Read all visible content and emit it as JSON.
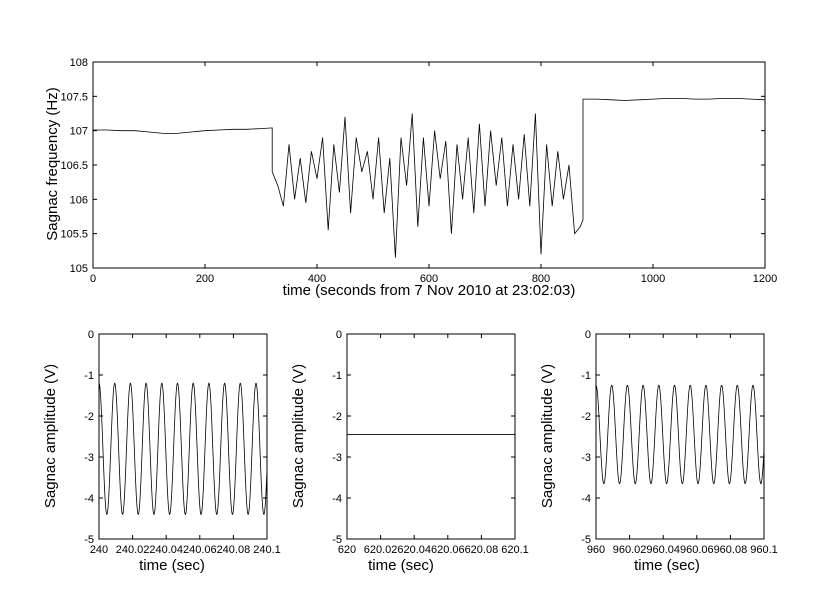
{
  "chart_data": [
    {
      "type": "line",
      "xlabel": "time (seconds from 7 Nov 2010 at 23:02:03)",
      "ylabel": "Sagnac frequency (Hz)",
      "xlim": [
        0,
        1200
      ],
      "ylim": [
        105,
        108
      ],
      "xticks": [
        0,
        200,
        400,
        600,
        800,
        1000,
        1200
      ],
      "yticks": [
        105,
        105.5,
        106,
        106.5,
        107,
        107.5,
        108
      ],
      "grid": false,
      "segments": [
        {
          "x": [
            0,
            25,
            50,
            75,
            100,
            125,
            150,
            175,
            200,
            225,
            250,
            275,
            300,
            320
          ],
          "y": [
            107.01,
            107.01,
            107.0,
            107.0,
            106.98,
            106.96,
            106.96,
            106.98,
            107.0,
            107.01,
            107.02,
            107.02,
            107.03,
            107.04
          ]
        },
        {
          "x": [
            320,
            330,
            340,
            350,
            360,
            370,
            380,
            390,
            400,
            410,
            420,
            430,
            440,
            450,
            460,
            470,
            480,
            490,
            500,
            510,
            520,
            530,
            540,
            550,
            560,
            570,
            580,
            590,
            600,
            610,
            620,
            630,
            640,
            650,
            660,
            670,
            680,
            690,
            700,
            710,
            720,
            730,
            740,
            750,
            760,
            770,
            780,
            790,
            800,
            810,
            820,
            830,
            840,
            850,
            860,
            870,
            875
          ],
          "y": [
            106.4,
            106.2,
            105.9,
            106.8,
            106.0,
            106.6,
            105.95,
            106.7,
            106.3,
            106.9,
            105.55,
            106.8,
            106.1,
            107.2,
            105.8,
            106.9,
            106.4,
            106.7,
            106.0,
            106.9,
            105.8,
            106.6,
            105.15,
            106.9,
            106.2,
            107.25,
            105.6,
            106.9,
            105.9,
            107.0,
            106.3,
            106.85,
            105.5,
            106.8,
            106.0,
            106.9,
            105.8,
            107.1,
            105.9,
            107.0,
            106.2,
            106.9,
            105.9,
            106.8,
            106.0,
            106.95,
            105.9,
            107.25,
            105.2,
            106.8,
            105.9,
            106.7,
            106.0,
            106.5,
            105.5,
            105.6,
            105.7
          ]
        },
        {
          "x": [
            875,
            900,
            925,
            950,
            975,
            1000,
            1025,
            1050,
            1075,
            1100,
            1125,
            1150,
            1175,
            1200
          ],
          "y": [
            107.46,
            107.46,
            107.45,
            107.44,
            107.45,
            107.46,
            107.47,
            107.47,
            107.46,
            107.46,
            107.47,
            107.47,
            107.46,
            107.45
          ]
        }
      ]
    },
    {
      "type": "line",
      "xlabel": "time (sec)",
      "ylabel": "Sagnac amplitude (V)",
      "xlim": [
        240,
        240.1
      ],
      "ylim": [
        -5,
        0
      ],
      "xticks": [
        240,
        240.02,
        240.04,
        240.06,
        240.08,
        240.1
      ],
      "yticks": [
        -5,
        -4,
        -3,
        -2,
        -1,
        0
      ],
      "grid": false,
      "signal": {
        "form": "sinusoid",
        "cycles": 10.7,
        "min": -4.4,
        "max": -1.2
      }
    },
    {
      "type": "line",
      "xlabel": "time (sec)",
      "ylabel": "Sagnac amplitude (V)",
      "xlim": [
        620,
        620.1
      ],
      "ylim": [
        -5,
        0
      ],
      "xticks": [
        620,
        620.02,
        620.04,
        620.06,
        620.08,
        620.1
      ],
      "yticks": [
        -5,
        -4,
        -3,
        -2,
        -1,
        0
      ],
      "grid": false,
      "signal": {
        "form": "flat",
        "level": -2.45
      }
    },
    {
      "type": "line",
      "xlabel": "time (sec)",
      "ylabel": "Sagnac amplitude (V)",
      "xlim": [
        960,
        960.1
      ],
      "ylim": [
        -5,
        0
      ],
      "xticks": [
        960,
        960.02,
        960.04,
        960.06,
        960.08,
        960.1
      ],
      "yticks": [
        -5,
        -4,
        -3,
        -2,
        -1,
        0
      ],
      "grid": false,
      "signal": {
        "form": "sinusoid",
        "cycles": 10.7,
        "min": -3.65,
        "max": -1.25
      }
    }
  ]
}
